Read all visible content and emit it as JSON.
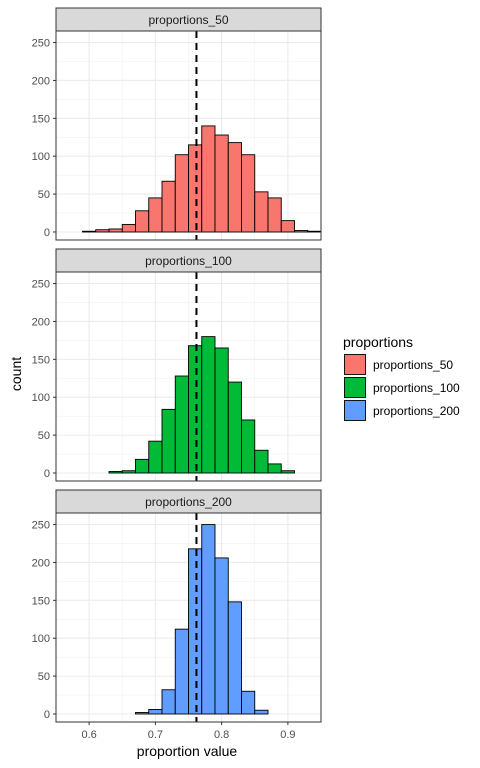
{
  "chart_data": {
    "type": "bar",
    "xlabel": "proportion value",
    "ylabel": "count",
    "xlim": [
      0.55,
      0.95
    ],
    "ylim": [
      0,
      260
    ],
    "x_ticks": [
      "0.6",
      "0.7",
      "0.8",
      "0.9"
    ],
    "x_tick_values": [
      0.6,
      0.7,
      0.8,
      0.9
    ],
    "y_ticks": [
      "0",
      "50",
      "100",
      "150",
      "200",
      "250"
    ],
    "y_tick_values": [
      0,
      50,
      100,
      150,
      200,
      250
    ],
    "reference_line_x": 0.762,
    "bin_width": 0.02,
    "legend": {
      "title": "proportions",
      "entries": [
        "proportions_50",
        "proportions_100",
        "proportions_200"
      ]
    },
    "grid": true,
    "legend_position": "right",
    "series": [
      {
        "name": "proportions_50",
        "color": "#F8766D",
        "bin_centers": [
          0.56,
          0.58,
          0.6,
          0.62,
          0.64,
          0.66,
          0.68,
          0.7,
          0.72,
          0.74,
          0.76,
          0.78,
          0.8,
          0.82,
          0.84,
          0.86,
          0.88,
          0.9,
          0.92,
          0.94
        ],
        "values": [
          0,
          0,
          1,
          3,
          4,
          10,
          28,
          45,
          67,
          102,
          115,
          140,
          128,
          118,
          102,
          53,
          45,
          15,
          2,
          1
        ]
      },
      {
        "name": "proportions_100",
        "color": "#00BA38",
        "bin_centers": [
          0.56,
          0.58,
          0.6,
          0.62,
          0.64,
          0.66,
          0.68,
          0.7,
          0.72,
          0.74,
          0.76,
          0.78,
          0.8,
          0.82,
          0.84,
          0.86,
          0.88,
          0.9,
          0.92,
          0.94
        ],
        "values": [
          0,
          0,
          0,
          0,
          2,
          3,
          18,
          42,
          84,
          128,
          168,
          180,
          165,
          120,
          70,
          30,
          12,
          3,
          0,
          0
        ]
      },
      {
        "name": "proportions_200",
        "color": "#619CFF",
        "bin_centers": [
          0.56,
          0.58,
          0.6,
          0.62,
          0.64,
          0.66,
          0.68,
          0.7,
          0.72,
          0.74,
          0.76,
          0.78,
          0.8,
          0.82,
          0.84,
          0.86,
          0.88,
          0.9,
          0.92,
          0.94
        ],
        "values": [
          0,
          0,
          0,
          0,
          0,
          0,
          2,
          6,
          32,
          112,
          218,
          250,
          206,
          148,
          30,
          5,
          0,
          0,
          0,
          0
        ]
      }
    ]
  }
}
